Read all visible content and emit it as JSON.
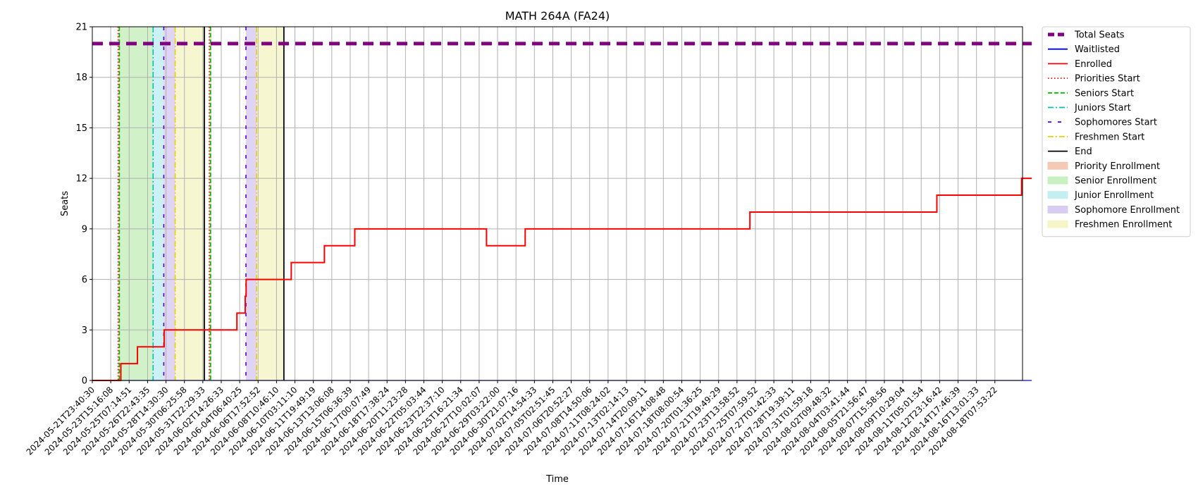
{
  "chart_data": {
    "type": "line",
    "title": "MATH 264A (FA24)",
    "xlabel": "Time",
    "ylabel": "Seats",
    "ylim": [
      0,
      21
    ],
    "yticks": [
      0,
      3,
      6,
      9,
      12,
      15,
      18,
      21
    ],
    "grid": true,
    "legend_position": "outside-right",
    "x_tick_labels": [
      "2024-05-21T23:40:30",
      "2024-05-23T15:16:08",
      "2024-05-25T07:14:51",
      "2024-05-26T22:43:35",
      "2024-05-28T14:30:30",
      "2024-05-30T06:25:58",
      "2024-05-31T22:29:33",
      "2024-06-02T14:26:33",
      "2024-06-04T06:40:25",
      "2024-06-06T17:52:52",
      "2024-06-08T10:46:10",
      "2024-06-10T03:11:10",
      "2024-06-11T19:49:19",
      "2024-06-13T13:06:08",
      "2024-06-15T06:36:39",
      "2024-06-17T00:07:49",
      "2024-06-18T17:38:24",
      "2024-06-20T11:23:28",
      "2024-06-22T05:03:44",
      "2024-06-23T22:37:10",
      "2024-06-25T16:21:34",
      "2024-06-27T10:02:07",
      "2024-06-29T03:22:00",
      "2024-06-30T21:07:16",
      "2024-07-02T14:54:33",
      "2024-07-05T02:51:45",
      "2024-07-06T20:52:27",
      "2024-07-08T14:50:06",
      "2024-07-11T08:24:02",
      "2024-07-13T02:14:13",
      "2024-07-14T20:09:11",
      "2024-07-16T14:08:48",
      "2024-07-18T08:00:54",
      "2024-07-20T01:36:25",
      "2024-07-21T19:49:29",
      "2024-07-23T13:58:52",
      "2024-07-25T07:59:52",
      "2024-07-27T01:42:33",
      "2024-07-28T19:39:11",
      "2024-07-31T01:59:18",
      "2024-08-02T09:48:32",
      "2024-08-04T03:41:44",
      "2024-08-05T21:56:47",
      "2024-08-07T15:58:56",
      "2024-08-09T10:29:04",
      "2024-08-11T05:01:54",
      "2024-08-12T23:16:42",
      "2024-08-14T17:46:39",
      "2024-08-16T13:01:33",
      "2024-08-18T07:53:22"
    ],
    "series": [
      {
        "name": "Total Seats",
        "color": "#800080",
        "style": "dashed-thick",
        "points": [
          [
            0,
            20
          ],
          [
            51,
            20
          ]
        ]
      },
      {
        "name": "Waitlisted",
        "color": "#0000ff",
        "style": "solid",
        "points": [
          [
            0,
            0
          ],
          [
            51,
            0
          ]
        ]
      },
      {
        "name": "Enrolled",
        "color": "#ff0000",
        "style": "step",
        "points": [
          [
            0,
            0
          ],
          [
            1.55,
            0
          ],
          [
            1.55,
            1
          ],
          [
            2.45,
            1
          ],
          [
            2.45,
            2
          ],
          [
            3.9,
            2
          ],
          [
            3.9,
            3
          ],
          [
            7.85,
            3
          ],
          [
            7.85,
            4
          ],
          [
            8.3,
            4
          ],
          [
            8.3,
            5
          ],
          [
            8.35,
            5
          ],
          [
            8.35,
            6
          ],
          [
            10.8,
            6
          ],
          [
            10.8,
            7
          ],
          [
            12.6,
            7
          ],
          [
            12.6,
            8
          ],
          [
            14.25,
            8
          ],
          [
            14.25,
            9
          ],
          [
            21.4,
            9
          ],
          [
            21.4,
            8
          ],
          [
            23.5,
            8
          ],
          [
            23.5,
            9
          ],
          [
            35.7,
            9
          ],
          [
            35.7,
            10
          ],
          [
            45.85,
            10
          ],
          [
            45.85,
            11
          ],
          [
            50.45,
            11
          ],
          [
            50.45,
            12
          ],
          [
            51,
            12
          ]
        ]
      }
    ],
    "markers": [
      {
        "name": "Priorities Start",
        "color": "#ff0000",
        "style": "dotted",
        "x": [
          1.4,
          6.35
        ]
      },
      {
        "name": "Seniors Start",
        "color": "#00bb00",
        "style": "dashed",
        "x": [
          1.47,
          6.42
        ]
      },
      {
        "name": "Juniors Start",
        "color": "#00bfbf",
        "style": "dashdot",
        "x": [
          3.3
        ]
      },
      {
        "name": "Sophomores Start",
        "color": "#5500cc",
        "style": "loosedash",
        "x": [
          3.88,
          8.34
        ]
      },
      {
        "name": "Freshmen Start",
        "color": "#e6d200",
        "style": "dashdot",
        "x": [
          4.5,
          8.92
        ]
      },
      {
        "name": "End",
        "color": "#000000",
        "style": "solid",
        "x": [
          6.08,
          10.4
        ]
      }
    ],
    "regions": [
      {
        "name": "Priority Enrollment",
        "color": "#f4c9b5",
        "spans": [
          [
            1.4,
            1.47
          ],
          [
            6.35,
            6.42
          ]
        ]
      },
      {
        "name": "Senior Enrollment",
        "color": "#c9f0c0",
        "spans": [
          [
            1.47,
            3.3
          ],
          [
            6.42,
            6.43
          ]
        ]
      },
      {
        "name": "Junior Enrollment",
        "color": "#c3eef2",
        "spans": [
          [
            3.3,
            3.88
          ]
        ]
      },
      {
        "name": "Sophomore Enrollment",
        "color": "#d9ccf2",
        "spans": [
          [
            3.88,
            4.5
          ],
          [
            8.34,
            8.92
          ]
        ]
      },
      {
        "name": "Freshmen Enrollment",
        "color": "#f5f5c9",
        "spans": [
          [
            4.5,
            6.08
          ],
          [
            8.92,
            10.4
          ]
        ]
      }
    ],
    "legend": [
      {
        "label": "Total Seats",
        "kind": "line",
        "color": "#800080",
        "style": "dashed-thick"
      },
      {
        "label": "Waitlisted",
        "kind": "line",
        "color": "#0000ff",
        "style": "solid"
      },
      {
        "label": "Enrolled",
        "kind": "line",
        "color": "#ff0000",
        "style": "solid"
      },
      {
        "label": "Priorities Start",
        "kind": "line",
        "color": "#ff0000",
        "style": "dotted"
      },
      {
        "label": "Seniors Start",
        "kind": "line",
        "color": "#00bb00",
        "style": "dashed"
      },
      {
        "label": "Juniors Start",
        "kind": "line",
        "color": "#00bfbf",
        "style": "dashdot"
      },
      {
        "label": "Sophomores Start",
        "kind": "line",
        "color": "#5500cc",
        "style": "loosedash"
      },
      {
        "label": "Freshmen Start",
        "kind": "line",
        "color": "#e6d200",
        "style": "dashdot"
      },
      {
        "label": "End",
        "kind": "line",
        "color": "#000000",
        "style": "solid"
      },
      {
        "label": "Priority Enrollment",
        "kind": "patch",
        "color": "#f4c9b5"
      },
      {
        "label": "Senior Enrollment",
        "kind": "patch",
        "color": "#c9f0c0"
      },
      {
        "label": "Junior Enrollment",
        "kind": "patch",
        "color": "#c3eef2"
      },
      {
        "label": "Sophomore Enrollment",
        "kind": "patch",
        "color": "#d9ccf2"
      },
      {
        "label": "Freshmen Enrollment",
        "kind": "patch",
        "color": "#f5f5c9"
      }
    ]
  }
}
